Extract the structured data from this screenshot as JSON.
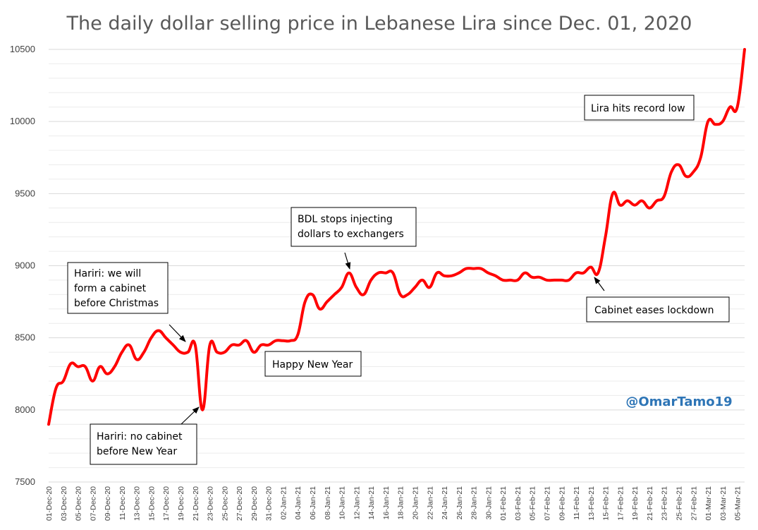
{
  "chart_data": {
    "type": "line",
    "title": "The daily dollar selling price in Lebanese Lira since Dec. 01, 2020",
    "xlabel": "",
    "ylabel": "",
    "ylim": [
      7500,
      10500
    ],
    "yticks": [
      7500,
      8000,
      8500,
      9000,
      9500,
      10000,
      10500
    ],
    "grid": true,
    "line_color": "#FF0000",
    "x_tick_labels": [
      "01-Dec-20",
      "03-Dec-20",
      "05-Dec-20",
      "07-Dec-20",
      "09-Dec-20",
      "11-Dec-20",
      "13-Dec-20",
      "15-Dec-20",
      "17-Dec-20",
      "19-Dec-20",
      "21-Dec-20",
      "23-Dec-20",
      "25-Dec-20",
      "27-Dec-20",
      "29-Dec-20",
      "31-Dec-20",
      "02-Jan-21",
      "04-Jan-21",
      "06-Jan-21",
      "08-Jan-21",
      "10-Jan-21",
      "12-Jan-21",
      "14-Jan-21",
      "16-Jan-21",
      "18-Jan-21",
      "20-Jan-21",
      "22-Jan-21",
      "24-Jan-21",
      "26-Jan-21",
      "28-Jan-21",
      "30-Jan-21",
      "01-Feb-21",
      "03-Feb-21",
      "05-Feb-21",
      "07-Feb-21",
      "09-Feb-21",
      "11-Feb-21",
      "13-Feb-21",
      "15-Feb-21",
      "17-Feb-21",
      "19-Feb-21",
      "21-Feb-21",
      "23-Feb-21",
      "25-Feb-21",
      "27-Feb-21",
      "01-Mar-21",
      "03-Mar-21",
      "05-Mar-21"
    ],
    "series": [
      {
        "values": [
          7900,
          8150,
          8200,
          8320,
          8300,
          8300,
          8200,
          8300,
          8250,
          8300,
          8400,
          8450,
          8350,
          8400,
          8500,
          8550,
          8500,
          8450,
          8400,
          8400,
          8450,
          8000,
          8450,
          8400,
          8400,
          8450,
          8450,
          8480,
          8400,
          8450,
          8450,
          8480,
          8480,
          8480,
          8520,
          8750,
          8800,
          8700,
          8750,
          8800,
          8850,
          8950,
          8850,
          8800,
          8900,
          8950,
          8950,
          8950,
          8800,
          8800,
          8850,
          8900,
          8850,
          8950,
          8930,
          8930,
          8950,
          8980,
          8980,
          8980,
          8950,
          8930,
          8900,
          8900,
          8900,
          8950,
          8920,
          8920,
          8900,
          8900,
          8900,
          8900,
          8950,
          8950,
          8990,
          8950,
          9200,
          9500,
          9420,
          9450,
          9420,
          9450,
          9400,
          9450,
          9480,
          9650,
          9700,
          9620,
          9650,
          9750,
          10000,
          9980,
          10000,
          10100,
          10100,
          10500
        ]
      }
    ],
    "annotations": [
      {
        "lines": [
          "Hariri: we will",
          "form a cabinet",
          "before Christmas"
        ]
      },
      {
        "lines": [
          "Hariri: no cabinet",
          "before New Year"
        ]
      },
      {
        "lines": [
          "Happy New Year"
        ]
      },
      {
        "lines": [
          "BDL stops injecting",
          "dollars to exchangers"
        ]
      },
      {
        "lines": [
          "Cabinet eases lockdown"
        ]
      },
      {
        "lines": [
          "Lira hits record low"
        ]
      }
    ],
    "credit": "@OmarTamo19"
  }
}
